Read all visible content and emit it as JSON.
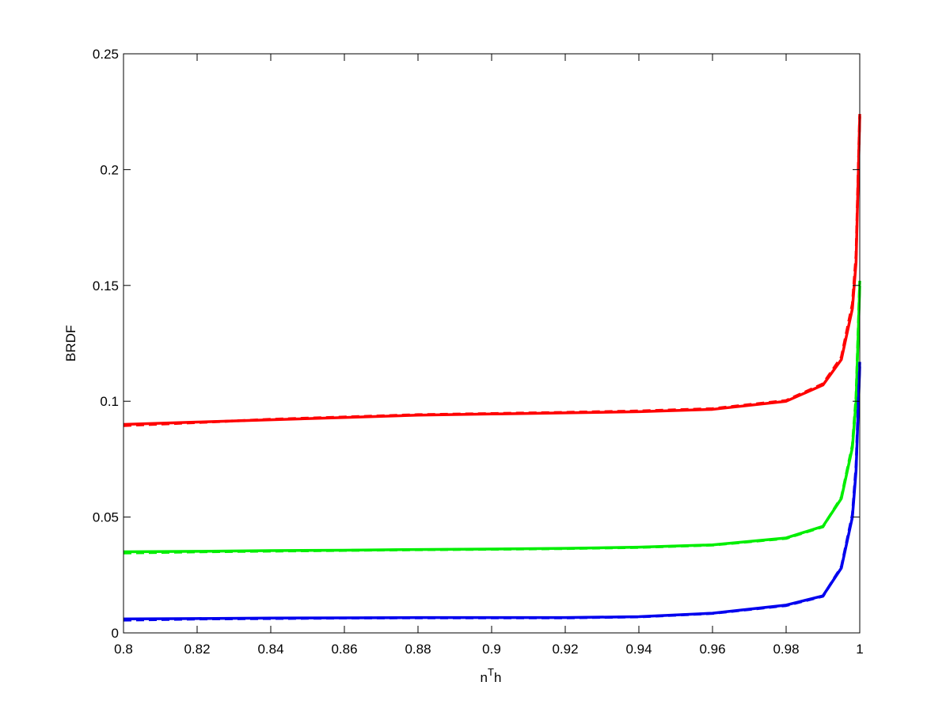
{
  "chart_data": {
    "type": "line",
    "xlabel": [
      "n",
      "T",
      "h"
    ],
    "ylabel": "BRDF",
    "x": [
      0.8,
      0.82,
      0.84,
      0.86,
      0.88,
      0.9,
      0.92,
      0.94,
      0.96,
      0.98,
      0.99,
      0.995,
      0.998,
      0.999,
      1.0
    ],
    "series": [
      {
        "color": "#ff0000",
        "dashed": false,
        "values": [
          0.09,
          0.091,
          0.092,
          0.093,
          0.094,
          0.0945,
          0.095,
          0.0955,
          0.0965,
          0.1,
          0.107,
          0.118,
          0.14,
          0.16,
          0.223
        ]
      },
      {
        "color": "#ff0000",
        "dashed": true,
        "values": [
          0.0895,
          0.0908,
          0.0922,
          0.0932,
          0.0942,
          0.0947,
          0.0952,
          0.0958,
          0.0968,
          0.1003,
          0.1075,
          0.119,
          0.142,
          0.163,
          0.224
        ]
      },
      {
        "color": "#00ee00",
        "dashed": false,
        "values": [
          0.035,
          0.0352,
          0.0355,
          0.0357,
          0.036,
          0.0362,
          0.0365,
          0.037,
          0.038,
          0.041,
          0.046,
          0.058,
          0.08,
          0.1,
          0.15
        ]
      },
      {
        "color": "#00ee00",
        "dashed": true,
        "values": [
          0.0345,
          0.035,
          0.0353,
          0.0356,
          0.0359,
          0.0361,
          0.0364,
          0.0369,
          0.0379,
          0.0408,
          0.0458,
          0.0585,
          0.081,
          0.102,
          0.152
        ]
      },
      {
        "color": "#0000ee",
        "dashed": false,
        "values": [
          0.006,
          0.0062,
          0.0064,
          0.0065,
          0.0066,
          0.0066,
          0.0066,
          0.007,
          0.0085,
          0.012,
          0.016,
          0.028,
          0.05,
          0.07,
          0.115
        ]
      },
      {
        "color": "#0000ee",
        "dashed": true,
        "values": [
          0.0055,
          0.006,
          0.0062,
          0.0064,
          0.0065,
          0.0065,
          0.0065,
          0.0069,
          0.0084,
          0.0118,
          0.0158,
          0.0285,
          0.051,
          0.072,
          0.117
        ]
      }
    ],
    "xlim": [
      0.8,
      1
    ],
    "ylim": [
      0,
      0.25
    ],
    "xticks": [
      0.8,
      0.82,
      0.84,
      0.86,
      0.88,
      0.9,
      0.92,
      0.94,
      0.96,
      0.98,
      1
    ],
    "yticks": [
      0,
      0.05,
      0.1,
      0.15,
      0.2,
      0.25
    ]
  }
}
